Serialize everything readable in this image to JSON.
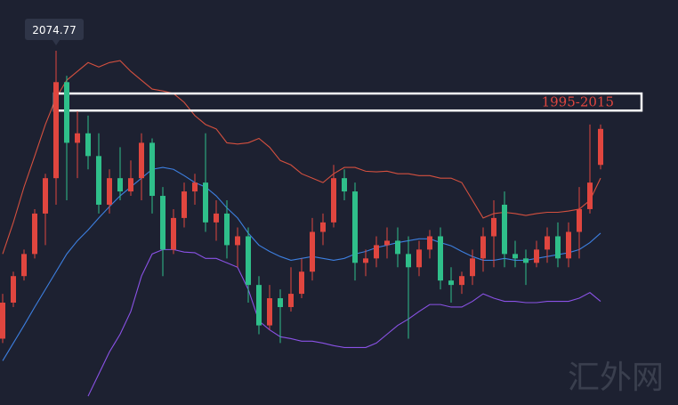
{
  "chart_data": {
    "type": "candlestick",
    "ylim": [
      1514,
      2155
    ],
    "up_color": "#e0463f",
    "down_color": "#2fbf8a",
    "open": [
      1619,
      1676,
      1718,
      1753,
      1817,
      1873,
      2025,
      1929,
      1944,
      1908,
      1831,
      1873,
      1852,
      1873,
      1929,
      1845,
      1760,
      1810,
      1852,
      1866,
      1803,
      1817,
      1767,
      1781,
      1704,
      1640,
      1683,
      1669,
      1690,
      1725,
      1788,
      1803,
      1873,
      1852,
      1739,
      1746,
      1767,
      1774,
      1753,
      1732,
      1760,
      1781,
      1711,
      1704,
      1718,
      1746,
      1781,
      1831,
      1753,
      1746,
      1739,
      1760,
      1781,
      1746,
      1788,
      1824,
      1894
    ],
    "high": [
      1690,
      1725,
      1760,
      1824,
      1880,
      2074.77,
      2035,
      1979,
      1972,
      1944,
      1887,
      1922,
      1901,
      1944,
      1936,
      1859,
      1824,
      1866,
      1880,
      1944,
      1838,
      1838,
      1795,
      1795,
      1718,
      1704,
      1697,
      1732,
      1746,
      1810,
      1817,
      1894,
      1887,
      1866,
      1760,
      1781,
      1795,
      1795,
      1781,
      1774,
      1791,
      1795,
      1732,
      1725,
      1760,
      1795,
      1838,
      1852,
      1774,
      1760,
      1774,
      1795,
      1803,
      1803,
      1859,
      1958,
      1958
    ],
    "low": [
      1612,
      1669,
      1711,
      1746,
      1767,
      1831,
      1838,
      1873,
      1887,
      1817,
      1817,
      1838,
      1845,
      1838,
      1817,
      1718,
      1753,
      1795,
      1831,
      1788,
      1774,
      1746,
      1732,
      1676,
      1626,
      1633,
      1612,
      1662,
      1683,
      1711,
      1767,
      1795,
      1838,
      1711,
      1718,
      1732,
      1746,
      1732,
      1619,
      1718,
      1746,
      1697,
      1676,
      1690,
      1704,
      1725,
      1732,
      1732,
      1732,
      1704,
      1732,
      1739,
      1732,
      1732,
      1746,
      1817,
      1887
    ],
    "close": [
      1676,
      1718,
      1753,
      1817,
      1873,
      2025,
      1929,
      1944,
      1908,
      1831,
      1873,
      1852,
      1873,
      1929,
      1845,
      1760,
      1810,
      1852,
      1866,
      1803,
      1817,
      1767,
      1781,
      1704,
      1640,
      1683,
      1669,
      1690,
      1725,
      1788,
      1803,
      1873,
      1852,
      1739,
      1746,
      1767,
      1774,
      1753,
      1732,
      1760,
      1781,
      1711,
      1704,
      1718,
      1746,
      1781,
      1810,
      1753,
      1746,
      1739,
      1760,
      1781,
      1746,
      1788,
      1824,
      1866,
      1951
    ],
    "lines": [
      {
        "color": "#d4503f",
        "values": [
          1753,
          1803,
          1859,
          1908,
          1958,
          2000,
          2028,
          2042,
          2056,
          2049,
          2056,
          2059,
          2042,
          2028,
          2014,
          2011,
          2007,
          1993,
          1972,
          1958,
          1951,
          1929,
          1927,
          1929,
          1936,
          1922,
          1901,
          1894,
          1880,
          1873,
          1866,
          1880,
          1890,
          1890,
          1884,
          1883,
          1884,
          1880,
          1880,
          1877,
          1877,
          1873,
          1873,
          1866,
          1838,
          1810,
          1817,
          1819,
          1817,
          1814,
          1817,
          1819,
          1819,
          1821,
          1824,
          1838,
          1873
        ]
      },
      {
        "color": "#3d7fe0",
        "values": [
          1584,
          1612,
          1640,
          1669,
          1697,
          1725,
          1753,
          1774,
          1791,
          1810,
          1828,
          1845,
          1859,
          1873,
          1887,
          1890,
          1887,
          1877,
          1866,
          1859,
          1845,
          1826,
          1810,
          1786,
          1767,
          1757,
          1749,
          1743,
          1746,
          1749,
          1746,
          1743,
          1746,
          1753,
          1757,
          1763,
          1767,
          1771,
          1774,
          1777,
          1777,
          1771,
          1766,
          1757,
          1749,
          1743,
          1743,
          1746,
          1743,
          1743,
          1746,
          1749,
          1752,
          1755,
          1760,
          1771,
          1786
        ]
      },
      {
        "color": "#8a52e6",
        "values": [
          null,
          null,
          null,
          null,
          null,
          null,
          null,
          null,
          1528,
          1563,
          1598,
          1626,
          1662,
          1718,
          1753,
          1760,
          1760,
          1756,
          1755,
          1746,
          1746,
          1739,
          1732,
          1697,
          1647,
          1633,
          1622,
          1619,
          1615,
          1615,
          1612,
          1608,
          1605,
          1605,
          1605,
          1612,
          1626,
          1640,
          1650,
          1662,
          1673,
          1673,
          1669,
          1669,
          1678,
          1690,
          1683,
          1678,
          1678,
          1676,
          1676,
          1678,
          1678,
          1678,
          1683,
          1692,
          1678
        ]
      }
    ],
    "box": {
      "label": "1995-2015",
      "ylim": [
        1980,
        2007
      ],
      "color": "#ffffff",
      "label_color": "#e0463f"
    },
    "watermark": "汇外网"
  }
}
